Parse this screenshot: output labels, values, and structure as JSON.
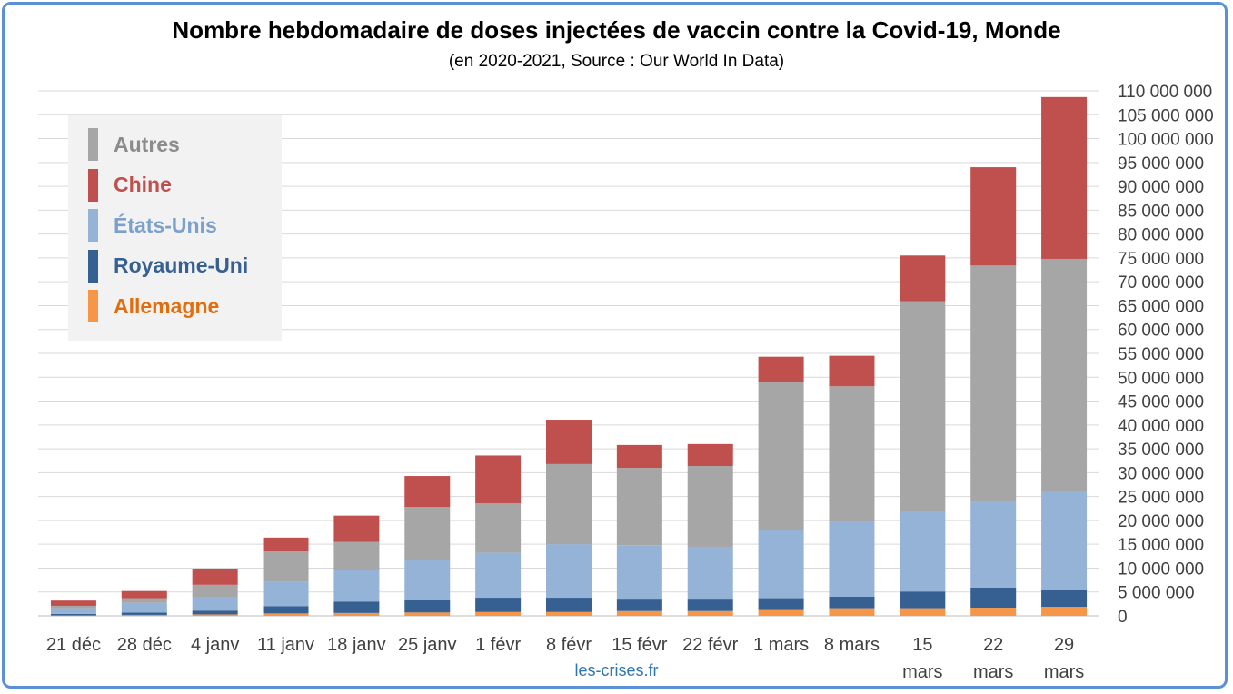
{
  "title": "Nombre hebdomadaire de doses injectées de vaccin contre la Covid-19, Monde",
  "subtitle": "(en 2020-2021, Source : Our World In Data)",
  "source": "les-crises.fr",
  "legend": [
    {
      "label": "Autres",
      "color": "#a6a6a6",
      "text_color": "#8c8c8c"
    },
    {
      "label": "Chine",
      "color": "#c0504d",
      "text_color": "#c0504d"
    },
    {
      "label": "États-Unis",
      "color": "#95b3d7",
      "text_color": "#7ba0cc"
    },
    {
      "label": "Royaume-Uni",
      "color": "#376092",
      "text_color": "#376092"
    },
    {
      "label": "Allemagne",
      "color": "#f79646",
      "text_color": "#e46c0a"
    }
  ],
  "chart_data": {
    "type": "bar",
    "stacked": true,
    "title": "Nombre hebdomadaire de doses injectées de vaccin contre la Covid-19, Monde",
    "subtitle": "(en 2020-2021, Source : Our World In Data)",
    "categories": [
      "21 déc",
      "28 déc",
      "4 janv",
      "11 janv",
      "18 janv",
      "25 janv",
      "1 févr",
      "8 févr",
      "15 févr",
      "22 févr",
      "1 mars",
      "8 mars",
      "15 mars",
      "22 mars",
      "29 mars"
    ],
    "series": [
      {
        "name": "Allemagne",
        "color": "#f79646",
        "values": [
          100000,
          200000,
          300000,
          500000,
          600000,
          700000,
          800000,
          800000,
          1000000,
          1000000,
          1400000,
          1600000,
          1600000,
          1700000,
          1900000
        ]
      },
      {
        "name": "Royaume-Uni",
        "color": "#376092",
        "values": [
          300000,
          500000,
          800000,
          1500000,
          2400000,
          2600000,
          3000000,
          3000000,
          2600000,
          2600000,
          2300000,
          2400000,
          3500000,
          4200000,
          3600000
        ]
      },
      {
        "name": "États-Unis",
        "color": "#95b3d7",
        "values": [
          1200000,
          2000000,
          2900000,
          5100000,
          6600000,
          8400000,
          9400000,
          11200000,
          11200000,
          10700000,
          14300000,
          15900000,
          16900000,
          18000000,
          20400000
        ]
      },
      {
        "name": "Autres",
        "color": "#a6a6a6",
        "values": [
          500000,
          1000000,
          2500000,
          6400000,
          5900000,
          11100000,
          10400000,
          16800000,
          16200000,
          17100000,
          30900000,
          28200000,
          43900000,
          49500000,
          48900000
        ]
      },
      {
        "name": "Chine",
        "color": "#c0504d",
        "values": [
          1100000,
          1500000,
          3400000,
          2900000,
          5500000,
          6500000,
          10000000,
          9300000,
          4800000,
          4600000,
          5400000,
          6400000,
          9600000,
          20600000,
          33900000
        ]
      }
    ],
    "ylim": [
      0,
      110000000
    ],
    "ytick_step": 5000000,
    "ytick_labels": [
      "0",
      "5 000 000",
      "10 000 000",
      "15 000 000",
      "20 000 000",
      "25 000 000",
      "30 000 000",
      "35 000 000",
      "40 000 000",
      "45 000 000",
      "50 000 000",
      "55 000 000",
      "60 000 000",
      "65 000 000",
      "70 000 000",
      "75 000 000",
      "80 000 000",
      "85 000 000",
      "90 000 000",
      "95 000 000",
      "100 000 000",
      "105 000 000",
      "110 000 000"
    ],
    "xlabel": "",
    "ylabel": "",
    "y_axis_side": "right",
    "grid": true,
    "legend_position": "top-left"
  }
}
